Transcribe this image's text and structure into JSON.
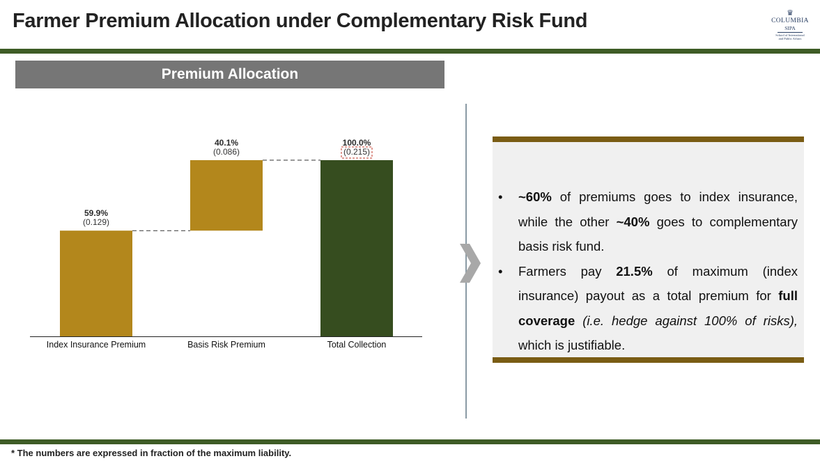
{
  "header": {
    "title": "Farmer Premium Allocation under Complementary Risk Fund",
    "logo": {
      "line1": "COLUMBIA",
      "line2": "SIPA",
      "line3": "School of International",
      "line4": "and Public Affairs"
    }
  },
  "panel": {
    "title": "Premium Allocation"
  },
  "chart_data": {
    "type": "waterfall",
    "categories": [
      "Index Insurance Premium",
      "Basis Risk Premium",
      "Total Collection"
    ],
    "values": [
      0.129,
      0.086,
      0.215
    ],
    "percent_labels": [
      "59.9%",
      "40.1%",
      "100.0%"
    ],
    "value_labels": [
      "(0.129)",
      "(0.086)",
      "(0.215)"
    ],
    "bar_kinds": [
      "increment",
      "increment",
      "total"
    ],
    "ylim": [
      0,
      0.215
    ],
    "colors": {
      "increment": "#b3871c",
      "total": "#364d1f"
    },
    "title": "",
    "xlabel": "",
    "ylabel": ""
  },
  "bullets": [
    {
      "marker": "•",
      "segments": [
        {
          "text": "~60%",
          "style": "bold"
        },
        {
          "text": " of premiums goes to index insurance, while the other ",
          "style": "normal"
        },
        {
          "text": "~40%",
          "style": "bold"
        },
        {
          "text": " goes to complementary basis risk fund.",
          "style": "normal"
        }
      ]
    },
    {
      "marker": "•",
      "segments": [
        {
          "text": "Farmers pay ",
          "style": "normal"
        },
        {
          "text": "21.5%",
          "style": "bold"
        },
        {
          "text": " of maximum (index insurance) payout as a total premium for ",
          "style": "normal"
        },
        {
          "text": "full coverage",
          "style": "bold"
        },
        {
          "text": " ",
          "style": "normal"
        },
        {
          "text": "(i.e. hedge against 100% of risks),",
          "style": "italic"
        },
        {
          "text": " which is justifiable.",
          "style": "normal"
        }
      ]
    }
  ],
  "footnote": "* The numbers are expressed in fraction of the maximum liability.",
  "icons": {
    "arrow": "chevron-right-icon",
    "logo": "crown-icon"
  },
  "colors": {
    "accent_green": "#3e5c26",
    "accent_gold": "#7a5c14",
    "header_gray": "#767676",
    "card_bg": "#f0f0f0"
  }
}
